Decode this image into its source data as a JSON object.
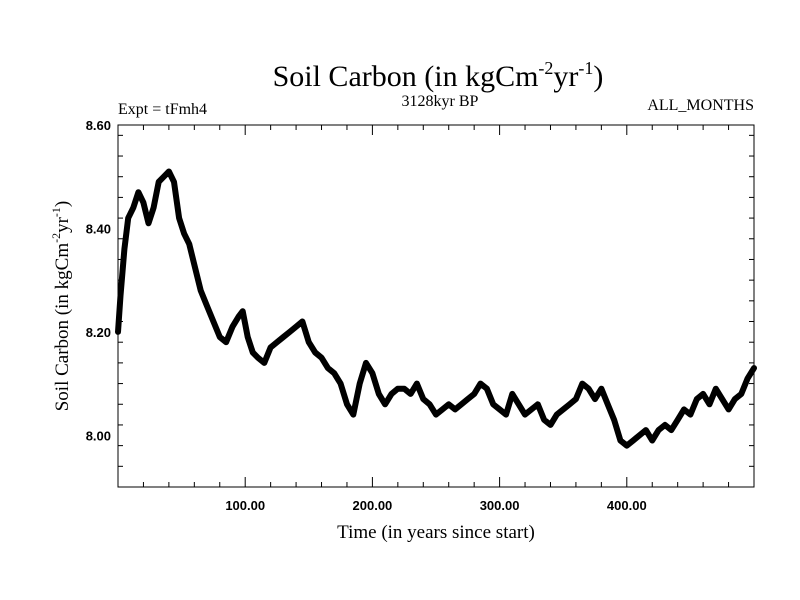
{
  "chart_data": {
    "type": "line",
    "title": {
      "base": "Soil Carbon (in kgCm",
      "sup1": "-2",
      "mid": "yr",
      "sup2": "-1",
      "end": ")"
    },
    "subtitle_left": "Expt = tFmh4",
    "subtitle_center": "3128kyr BP",
    "subtitle_right": "ALL_MONTHS",
    "xlabel": "Time (in years since start)",
    "ylabel": {
      "base": "Soil Carbon (in kgCm",
      "sup1": "-2",
      "mid": "yr",
      "sup2": "-1",
      "end": ")"
    },
    "xlim": [
      0,
      500
    ],
    "ylim": [
      7.9,
      8.6
    ],
    "x_ticks": [
      100,
      200,
      300,
      400
    ],
    "x_tick_labels": [
      "100.00",
      "200.00",
      "300.00",
      "400.00"
    ],
    "y_ticks": [
      8.0,
      8.2,
      8.4,
      8.6
    ],
    "y_tick_labels": [
      "8.00",
      "8.20",
      "8.40",
      "8.60"
    ],
    "series": [
      {
        "name": "Soil Carbon",
        "x": [
          0,
          2,
          5,
          8,
          12,
          16,
          20,
          24,
          28,
          32,
          36,
          40,
          44,
          48,
          52,
          56,
          60,
          65,
          70,
          75,
          80,
          85,
          90,
          95,
          98,
          102,
          106,
          110,
          115,
          120,
          125,
          130,
          135,
          140,
          145,
          150,
          155,
          160,
          165,
          170,
          175,
          180,
          185,
          190,
          195,
          200,
          205,
          210,
          215,
          220,
          225,
          230,
          235,
          240,
          245,
          250,
          255,
          260,
          265,
          270,
          275,
          280,
          285,
          290,
          295,
          300,
          305,
          310,
          315,
          320,
          325,
          330,
          335,
          340,
          345,
          350,
          355,
          360,
          365,
          370,
          375,
          380,
          385,
          390,
          395,
          400,
          405,
          410,
          415,
          420,
          425,
          430,
          435,
          440,
          445,
          450,
          455,
          460,
          465,
          470,
          475,
          480,
          485,
          490,
          495,
          500
        ],
        "values": [
          8.2,
          8.27,
          8.36,
          8.42,
          8.44,
          8.47,
          8.45,
          8.41,
          8.44,
          8.49,
          8.5,
          8.51,
          8.49,
          8.42,
          8.39,
          8.37,
          8.33,
          8.28,
          8.25,
          8.22,
          8.19,
          8.18,
          8.21,
          8.23,
          8.24,
          8.19,
          8.16,
          8.15,
          8.14,
          8.17,
          8.18,
          8.19,
          8.2,
          8.21,
          8.22,
          8.18,
          8.16,
          8.15,
          8.13,
          8.12,
          8.1,
          8.06,
          8.04,
          8.1,
          8.14,
          8.12,
          8.08,
          8.06,
          8.08,
          8.09,
          8.09,
          8.08,
          8.1,
          8.07,
          8.06,
          8.04,
          8.05,
          8.06,
          8.05,
          8.06,
          8.07,
          8.08,
          8.1,
          8.09,
          8.06,
          8.05,
          8.04,
          8.08,
          8.06,
          8.04,
          8.05,
          8.06,
          8.03,
          8.02,
          8.04,
          8.05,
          8.06,
          8.07,
          8.1,
          8.09,
          8.07,
          8.09,
          8.06,
          8.03,
          7.99,
          7.98,
          7.99,
          8.0,
          8.01,
          7.99,
          8.01,
          8.02,
          8.01,
          8.03,
          8.05,
          8.04,
          8.07,
          8.08,
          8.06,
          8.09,
          8.07,
          8.05,
          8.07,
          8.08,
          8.11,
          8.13
        ]
      }
    ]
  }
}
